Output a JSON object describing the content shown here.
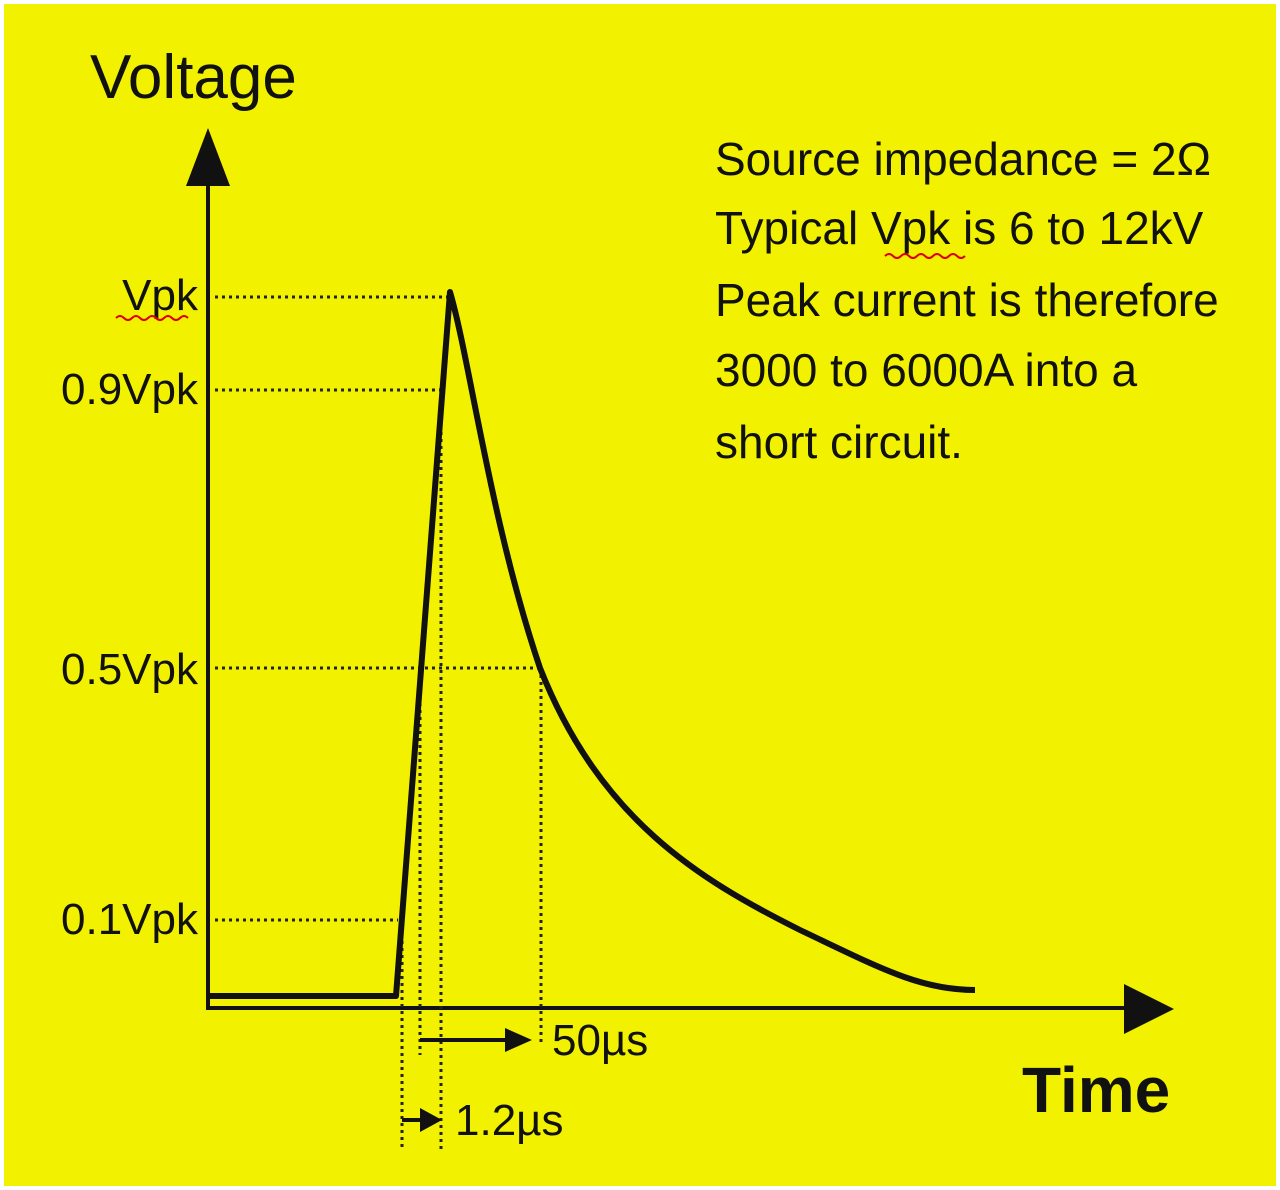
{
  "axes": {
    "y_label": "Voltage",
    "x_label": "Time"
  },
  "levels": [
    "Vpk",
    "0.9Vpk",
    "0.5Vpk",
    "0.1Vpk"
  ],
  "intervals": [
    "50µs",
    "1.2µs"
  ],
  "note": {
    "lines": [
      "Source impedance = 2Ω",
      "Typical Vpk is 6 to 12kV",
      "Peak current is therefore",
      "3000 to 6000A into a",
      "short circuit."
    ]
  }
}
